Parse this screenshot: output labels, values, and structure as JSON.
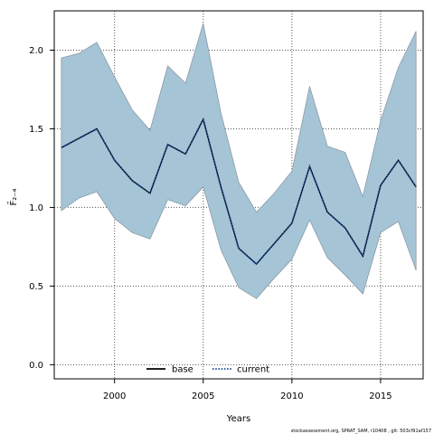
{
  "chart_data": {
    "type": "area",
    "xlabel": "Years",
    "ylabel": "F̄₂₋₄",
    "xlim": [
      1996.6,
      2017.4
    ],
    "ylim": [
      -0.09,
      2.25
    ],
    "xticks": [
      2000,
      2005,
      2010,
      2015
    ],
    "yticks": [
      0.0,
      0.5,
      1.0,
      1.5,
      2.0
    ],
    "xtick_labels": [
      "2000",
      "2005",
      "2010",
      "2015"
    ],
    "ytick_labels": [
      "0.0",
      "0.5",
      "1.0",
      "1.5",
      "2.0"
    ],
    "grid": true,
    "legend": {
      "placement": "bottom-center",
      "entries": [
        "base",
        "current"
      ]
    },
    "band_color": "#a5c4d6",
    "band_edge_color": "#8a9aa6",
    "x": [
      1997,
      1998,
      1999,
      2000,
      2001,
      2002,
      2003,
      2004,
      2005,
      2006,
      2007,
      2008,
      2009,
      2010,
      2011,
      2012,
      2013,
      2014,
      2015,
      2016,
      2017
    ],
    "series": [
      {
        "name": "base",
        "style": "solid",
        "color": "#000000",
        "values": [
          1.38,
          1.44,
          1.5,
          1.3,
          1.17,
          1.09,
          1.4,
          1.34,
          1.56,
          1.13,
          0.74,
          0.64,
          0.77,
          0.9,
          1.26,
          0.97,
          0.87,
          0.69,
          1.14,
          1.3,
          1.13
        ]
      },
      {
        "name": "current",
        "style": "dotted",
        "color": "#1f4e9a",
        "values": [
          1.38,
          1.44,
          1.5,
          1.3,
          1.17,
          1.09,
          1.4,
          1.34,
          1.56,
          1.13,
          0.74,
          0.64,
          0.77,
          0.9,
          1.26,
          0.97,
          0.87,
          0.69,
          1.14,
          1.3,
          1.13
        ]
      }
    ],
    "band": {
      "lower": [
        0.98,
        1.06,
        1.1,
        0.93,
        0.84,
        0.8,
        1.05,
        1.01,
        1.13,
        0.73,
        0.49,
        0.42,
        0.55,
        0.67,
        0.92,
        0.68,
        0.57,
        0.45,
        0.84,
        0.91,
        0.6
      ],
      "upper": [
        1.95,
        1.98,
        2.05,
        1.83,
        1.62,
        1.49,
        1.9,
        1.79,
        2.17,
        1.6,
        1.16,
        0.97,
        1.09,
        1.23,
        1.77,
        1.39,
        1.35,
        1.07,
        1.55,
        1.89,
        2.12
      ]
    }
  },
  "footnote": "stockassessment.org, SPRAT_SAM, r10408 , git: 503cf91af157"
}
